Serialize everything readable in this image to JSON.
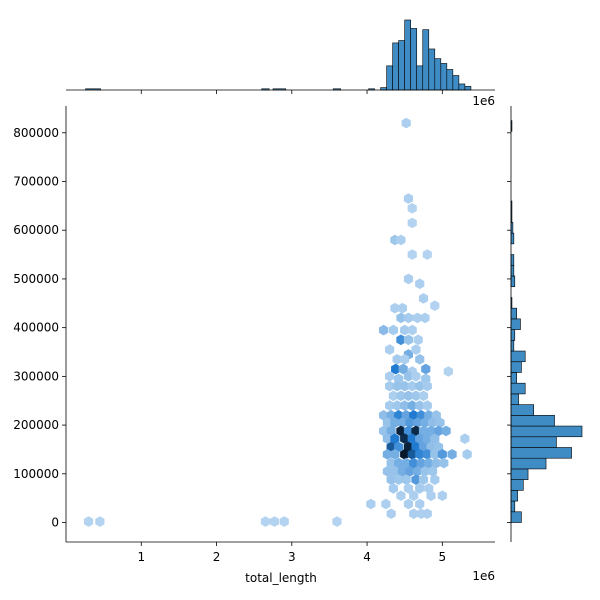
{
  "chart_data": {
    "type": "hexbin-jointplot",
    "xlabel": "total_length",
    "ylabel": "",
    "x_offset_label": "1e6",
    "marginal_offset_label": "1e6",
    "xlim": [
      0.0,
      5.7
    ],
    "ylim": [
      -40000,
      855000
    ],
    "x_scale": 1000000,
    "xticks": [
      1,
      2,
      3,
      4,
      5
    ],
    "xtick_labels": [
      "1",
      "2",
      "3",
      "4",
      "5"
    ],
    "yticks": [
      0,
      100000,
      200000,
      300000,
      400000,
      500000,
      600000,
      700000,
      800000
    ],
    "ytick_labels": [
      "0",
      "100000",
      "200000",
      "300000",
      "400000",
      "500000",
      "600000",
      "700000",
      "800000"
    ],
    "colors": {
      "hist": "#3f8cc4",
      "hex_dark": "#08172b",
      "hex_mid": "#1f7ad0",
      "hex_light": "#dcecfa"
    },
    "hexbins": [
      {
        "x": 0.3,
        "y": 2000,
        "d": 0.12
      },
      {
        "x": 0.45,
        "y": 2000,
        "d": 0.12
      },
      {
        "x": 2.65,
        "y": 2000,
        "d": 0.12
      },
      {
        "x": 2.77,
        "y": 2000,
        "d": 0.12
      },
      {
        "x": 2.9,
        "y": 2000,
        "d": 0.12
      },
      {
        "x": 3.6,
        "y": 2000,
        "d": 0.12
      },
      {
        "x": 4.52,
        "y": 820000,
        "d": 0.14
      },
      {
        "x": 4.55,
        "y": 665000,
        "d": 0.14
      },
      {
        "x": 4.6,
        "y": 645000,
        "d": 0.12
      },
      {
        "x": 4.6,
        "y": 615000,
        "d": 0.12
      },
      {
        "x": 4.37,
        "y": 580000,
        "d": 0.18
      },
      {
        "x": 4.45,
        "y": 580000,
        "d": 0.14
      },
      {
        "x": 4.6,
        "y": 550000,
        "d": 0.12
      },
      {
        "x": 4.8,
        "y": 550000,
        "d": 0.12
      },
      {
        "x": 4.55,
        "y": 500000,
        "d": 0.14
      },
      {
        "x": 4.7,
        "y": 490000,
        "d": 0.14
      },
      {
        "x": 4.75,
        "y": 460000,
        "d": 0.14
      },
      {
        "x": 4.9,
        "y": 445000,
        "d": 0.12
      },
      {
        "x": 4.37,
        "y": 440000,
        "d": 0.14
      },
      {
        "x": 4.47,
        "y": 440000,
        "d": 0.14
      },
      {
        "x": 4.45,
        "y": 420000,
        "d": 0.2
      },
      {
        "x": 4.55,
        "y": 420000,
        "d": 0.16
      },
      {
        "x": 4.67,
        "y": 420000,
        "d": 0.14
      },
      {
        "x": 4.77,
        "y": 420000,
        "d": 0.14
      },
      {
        "x": 4.22,
        "y": 395000,
        "d": 0.24
      },
      {
        "x": 4.35,
        "y": 395000,
        "d": 0.16
      },
      {
        "x": 4.5,
        "y": 395000,
        "d": 0.16
      },
      {
        "x": 4.6,
        "y": 395000,
        "d": 0.14
      },
      {
        "x": 4.45,
        "y": 375000,
        "d": 0.45
      },
      {
        "x": 4.55,
        "y": 375000,
        "d": 0.2
      },
      {
        "x": 4.68,
        "y": 375000,
        "d": 0.14
      },
      {
        "x": 4.3,
        "y": 355000,
        "d": 0.14
      },
      {
        "x": 4.55,
        "y": 345000,
        "d": 0.3
      },
      {
        "x": 4.65,
        "y": 355000,
        "d": 0.14
      },
      {
        "x": 4.4,
        "y": 335000,
        "d": 0.16
      },
      {
        "x": 4.5,
        "y": 335000,
        "d": 0.14
      },
      {
        "x": 4.7,
        "y": 335000,
        "d": 0.2
      },
      {
        "x": 4.38,
        "y": 315000,
        "d": 0.55
      },
      {
        "x": 4.48,
        "y": 315000,
        "d": 0.3
      },
      {
        "x": 4.6,
        "y": 310000,
        "d": 0.14
      },
      {
        "x": 4.78,
        "y": 315000,
        "d": 0.35
      },
      {
        "x": 4.3,
        "y": 300000,
        "d": 0.14
      },
      {
        "x": 4.42,
        "y": 295000,
        "d": 0.18
      },
      {
        "x": 4.55,
        "y": 300000,
        "d": 0.2
      },
      {
        "x": 4.65,
        "y": 300000,
        "d": 0.14
      },
      {
        "x": 4.78,
        "y": 295000,
        "d": 0.18
      },
      {
        "x": 5.08,
        "y": 310000,
        "d": 0.12
      },
      {
        "x": 4.3,
        "y": 280000,
        "d": 0.16
      },
      {
        "x": 4.4,
        "y": 280000,
        "d": 0.2
      },
      {
        "x": 4.5,
        "y": 280000,
        "d": 0.2
      },
      {
        "x": 4.6,
        "y": 280000,
        "d": 0.16
      },
      {
        "x": 4.7,
        "y": 280000,
        "d": 0.2
      },
      {
        "x": 4.8,
        "y": 280000,
        "d": 0.16
      },
      {
        "x": 4.35,
        "y": 260000,
        "d": 0.14
      },
      {
        "x": 4.45,
        "y": 260000,
        "d": 0.18
      },
      {
        "x": 4.55,
        "y": 260000,
        "d": 0.2
      },
      {
        "x": 4.65,
        "y": 260000,
        "d": 0.18
      },
      {
        "x": 4.75,
        "y": 260000,
        "d": 0.14
      },
      {
        "x": 4.3,
        "y": 240000,
        "d": 0.16
      },
      {
        "x": 4.4,
        "y": 240000,
        "d": 0.18
      },
      {
        "x": 4.5,
        "y": 240000,
        "d": 0.22
      },
      {
        "x": 4.6,
        "y": 240000,
        "d": 0.3
      },
      {
        "x": 4.7,
        "y": 240000,
        "d": 0.2
      },
      {
        "x": 4.8,
        "y": 240000,
        "d": 0.16
      },
      {
        "x": 4.22,
        "y": 220000,
        "d": 0.22
      },
      {
        "x": 4.32,
        "y": 220000,
        "d": 0.3
      },
      {
        "x": 4.42,
        "y": 220000,
        "d": 0.5
      },
      {
        "x": 4.52,
        "y": 220000,
        "d": 0.35
      },
      {
        "x": 4.62,
        "y": 220000,
        "d": 0.55
      },
      {
        "x": 4.72,
        "y": 220000,
        "d": 0.45
      },
      {
        "x": 4.82,
        "y": 220000,
        "d": 0.3
      },
      {
        "x": 4.92,
        "y": 220000,
        "d": 0.2
      },
      {
        "x": 4.27,
        "y": 205000,
        "d": 0.2
      },
      {
        "x": 4.37,
        "y": 205000,
        "d": 0.3
      },
      {
        "x": 4.47,
        "y": 205000,
        "d": 0.3
      },
      {
        "x": 4.57,
        "y": 205000,
        "d": 0.4
      },
      {
        "x": 4.67,
        "y": 205000,
        "d": 0.35
      },
      {
        "x": 4.77,
        "y": 205000,
        "d": 0.3
      },
      {
        "x": 4.87,
        "y": 205000,
        "d": 0.22
      },
      {
        "x": 4.97,
        "y": 205000,
        "d": 0.2
      },
      {
        "x": 4.22,
        "y": 188000,
        "d": 0.2
      },
      {
        "x": 4.32,
        "y": 188000,
        "d": 0.3
      },
      {
        "x": 4.45,
        "y": 188000,
        "d": 0.95
      },
      {
        "x": 4.55,
        "y": 188000,
        "d": 0.45
      },
      {
        "x": 4.65,
        "y": 188000,
        "d": 0.92
      },
      {
        "x": 4.75,
        "y": 188000,
        "d": 0.3
      },
      {
        "x": 4.85,
        "y": 188000,
        "d": 0.3
      },
      {
        "x": 4.95,
        "y": 188000,
        "d": 0.35
      },
      {
        "x": 5.05,
        "y": 188000,
        "d": 0.3
      },
      {
        "x": 4.27,
        "y": 172000,
        "d": 0.22
      },
      {
        "x": 4.37,
        "y": 172000,
        "d": 0.55
      },
      {
        "x": 4.5,
        "y": 172000,
        "d": 0.9
      },
      {
        "x": 4.6,
        "y": 172000,
        "d": 0.55
      },
      {
        "x": 4.7,
        "y": 172000,
        "d": 0.35
      },
      {
        "x": 4.8,
        "y": 172000,
        "d": 0.3
      },
      {
        "x": 4.9,
        "y": 172000,
        "d": 0.22
      },
      {
        "x": 5.3,
        "y": 172000,
        "d": 0.14
      },
      {
        "x": 4.32,
        "y": 155000,
        "d": 0.7
      },
      {
        "x": 4.42,
        "y": 155000,
        "d": 0.45
      },
      {
        "x": 4.55,
        "y": 155000,
        "d": 0.95
      },
      {
        "x": 4.65,
        "y": 155000,
        "d": 0.55
      },
      {
        "x": 4.75,
        "y": 155000,
        "d": 0.35
      },
      {
        "x": 4.85,
        "y": 155000,
        "d": 0.22
      },
      {
        "x": 4.95,
        "y": 155000,
        "d": 0.2
      },
      {
        "x": 4.27,
        "y": 140000,
        "d": 0.3
      },
      {
        "x": 4.37,
        "y": 140000,
        "d": 0.3
      },
      {
        "x": 4.5,
        "y": 140000,
        "d": 1.0
      },
      {
        "x": 4.6,
        "y": 140000,
        "d": 0.7
      },
      {
        "x": 4.7,
        "y": 140000,
        "d": 0.5
      },
      {
        "x": 4.8,
        "y": 140000,
        "d": 0.45
      },
      {
        "x": 4.9,
        "y": 140000,
        "d": 0.2
      },
      {
        "x": 5.0,
        "y": 140000,
        "d": 0.4
      },
      {
        "x": 5.13,
        "y": 140000,
        "d": 0.3
      },
      {
        "x": 5.33,
        "y": 140000,
        "d": 0.16
      },
      {
        "x": 4.32,
        "y": 122000,
        "d": 0.2
      },
      {
        "x": 4.42,
        "y": 122000,
        "d": 0.3
      },
      {
        "x": 4.52,
        "y": 122000,
        "d": 0.3
      },
      {
        "x": 4.62,
        "y": 122000,
        "d": 0.45
      },
      {
        "x": 4.72,
        "y": 122000,
        "d": 0.35
      },
      {
        "x": 4.82,
        "y": 122000,
        "d": 0.3
      },
      {
        "x": 4.92,
        "y": 122000,
        "d": 0.22
      },
      {
        "x": 5.02,
        "y": 122000,
        "d": 0.2
      },
      {
        "x": 4.27,
        "y": 105000,
        "d": 0.2
      },
      {
        "x": 4.37,
        "y": 105000,
        "d": 0.2
      },
      {
        "x": 4.47,
        "y": 105000,
        "d": 0.3
      },
      {
        "x": 4.57,
        "y": 105000,
        "d": 0.35
      },
      {
        "x": 4.67,
        "y": 105000,
        "d": 0.3
      },
      {
        "x": 4.77,
        "y": 105000,
        "d": 0.2
      },
      {
        "x": 4.87,
        "y": 105000,
        "d": 0.18
      },
      {
        "x": 4.32,
        "y": 88000,
        "d": 0.2
      },
      {
        "x": 4.42,
        "y": 88000,
        "d": 0.18
      },
      {
        "x": 4.52,
        "y": 88000,
        "d": 0.18
      },
      {
        "x": 4.65,
        "y": 88000,
        "d": 0.4
      },
      {
        "x": 4.75,
        "y": 88000,
        "d": 0.18
      },
      {
        "x": 4.9,
        "y": 88000,
        "d": 0.16
      },
      {
        "x": 4.35,
        "y": 70000,
        "d": 0.16
      },
      {
        "x": 4.55,
        "y": 70000,
        "d": 0.14
      },
      {
        "x": 4.7,
        "y": 70000,
        "d": 0.16
      },
      {
        "x": 4.82,
        "y": 70000,
        "d": 0.14
      },
      {
        "x": 4.45,
        "y": 55000,
        "d": 0.14
      },
      {
        "x": 4.62,
        "y": 55000,
        "d": 0.14
      },
      {
        "x": 4.85,
        "y": 55000,
        "d": 0.14
      },
      {
        "x": 5.0,
        "y": 55000,
        "d": 0.14
      },
      {
        "x": 4.05,
        "y": 38000,
        "d": 0.14
      },
      {
        "x": 4.25,
        "y": 38000,
        "d": 0.14
      },
      {
        "x": 4.55,
        "y": 38000,
        "d": 0.14
      },
      {
        "x": 4.7,
        "y": 38000,
        "d": 0.14
      },
      {
        "x": 4.32,
        "y": 18000,
        "d": 0.14
      },
      {
        "x": 4.62,
        "y": 18000,
        "d": 0.14
      },
      {
        "x": 4.72,
        "y": 18000,
        "d": 0.14
      },
      {
        "x": 4.8,
        "y": 18000,
        "d": 0.14
      }
    ],
    "marginal_x": {
      "bins": [
        {
          "x0": 0.26,
          "x1": 0.46,
          "h": 1
        },
        {
          "x0": 2.6,
          "x1": 2.7,
          "h": 1
        },
        {
          "x0": 2.75,
          "x1": 2.92,
          "h": 1
        },
        {
          "x0": 3.55,
          "x1": 3.65,
          "h": 1
        },
        {
          "x0": 4.02,
          "x1": 4.1,
          "h": 1
        },
        {
          "x0": 4.18,
          "x1": 4.26,
          "h": 2
        },
        {
          "x0": 4.26,
          "x1": 4.34,
          "h": 20
        },
        {
          "x0": 4.34,
          "x1": 4.42,
          "h": 39
        },
        {
          "x0": 4.42,
          "x1": 4.5,
          "h": 41
        },
        {
          "x0": 4.5,
          "x1": 4.58,
          "h": 58
        },
        {
          "x0": 4.58,
          "x1": 4.66,
          "h": 51
        },
        {
          "x0": 4.66,
          "x1": 4.74,
          "h": 20
        },
        {
          "x0": 4.74,
          "x1": 4.82,
          "h": 50
        },
        {
          "x0": 4.82,
          "x1": 4.9,
          "h": 34
        },
        {
          "x0": 4.9,
          "x1": 4.98,
          "h": 26
        },
        {
          "x0": 4.98,
          "x1": 5.06,
          "h": 22
        },
        {
          "x0": 5.06,
          "x1": 5.14,
          "h": 17
        },
        {
          "x0": 5.14,
          "x1": 5.22,
          "h": 12
        },
        {
          "x0": 5.22,
          "x1": 5.3,
          "h": 5
        },
        {
          "x0": 5.3,
          "x1": 5.38,
          "h": 3
        }
      ]
    },
    "marginal_y": {
      "bins": [
        {
          "y0": 0,
          "y1": 22000,
          "w": 11
        },
        {
          "y0": 22000,
          "y1": 44000,
          "w": 4
        },
        {
          "y0": 44000,
          "y1": 66000,
          "w": 7
        },
        {
          "y0": 66000,
          "y1": 88000,
          "w": 13
        },
        {
          "y0": 88000,
          "y1": 110000,
          "w": 18
        },
        {
          "y0": 110000,
          "y1": 132000,
          "w": 37
        },
        {
          "y0": 132000,
          "y1": 154000,
          "w": 64
        },
        {
          "y0": 154000,
          "y1": 176000,
          "w": 48
        },
        {
          "y0": 176000,
          "y1": 198000,
          "w": 75
        },
        {
          "y0": 198000,
          "y1": 220000,
          "w": 46
        },
        {
          "y0": 220000,
          "y1": 242000,
          "w": 24
        },
        {
          "y0": 242000,
          "y1": 264000,
          "w": 8
        },
        {
          "y0": 264000,
          "y1": 286000,
          "w": 15
        },
        {
          "y0": 286000,
          "y1": 308000,
          "w": 6
        },
        {
          "y0": 308000,
          "y1": 330000,
          "w": 11
        },
        {
          "y0": 330000,
          "y1": 352000,
          "w": 15
        },
        {
          "y0": 352000,
          "y1": 374000,
          "w": 3
        },
        {
          "y0": 374000,
          "y1": 396000,
          "w": 4
        },
        {
          "y0": 396000,
          "y1": 418000,
          "w": 10
        },
        {
          "y0": 418000,
          "y1": 440000,
          "w": 6
        },
        {
          "y0": 440000,
          "y1": 462000,
          "w": 1
        },
        {
          "y0": 484000,
          "y1": 506000,
          "w": 4
        },
        {
          "y0": 506000,
          "y1": 528000,
          "w": 3
        },
        {
          "y0": 528000,
          "y1": 550000,
          "w": 3
        },
        {
          "y0": 572000,
          "y1": 594000,
          "w": 3
        },
        {
          "y0": 594000,
          "y1": 616000,
          "w": 2
        },
        {
          "y0": 616000,
          "y1": 660000,
          "w": 1
        },
        {
          "y0": 803000,
          "y1": 825000,
          "w": 1
        }
      ]
    }
  }
}
